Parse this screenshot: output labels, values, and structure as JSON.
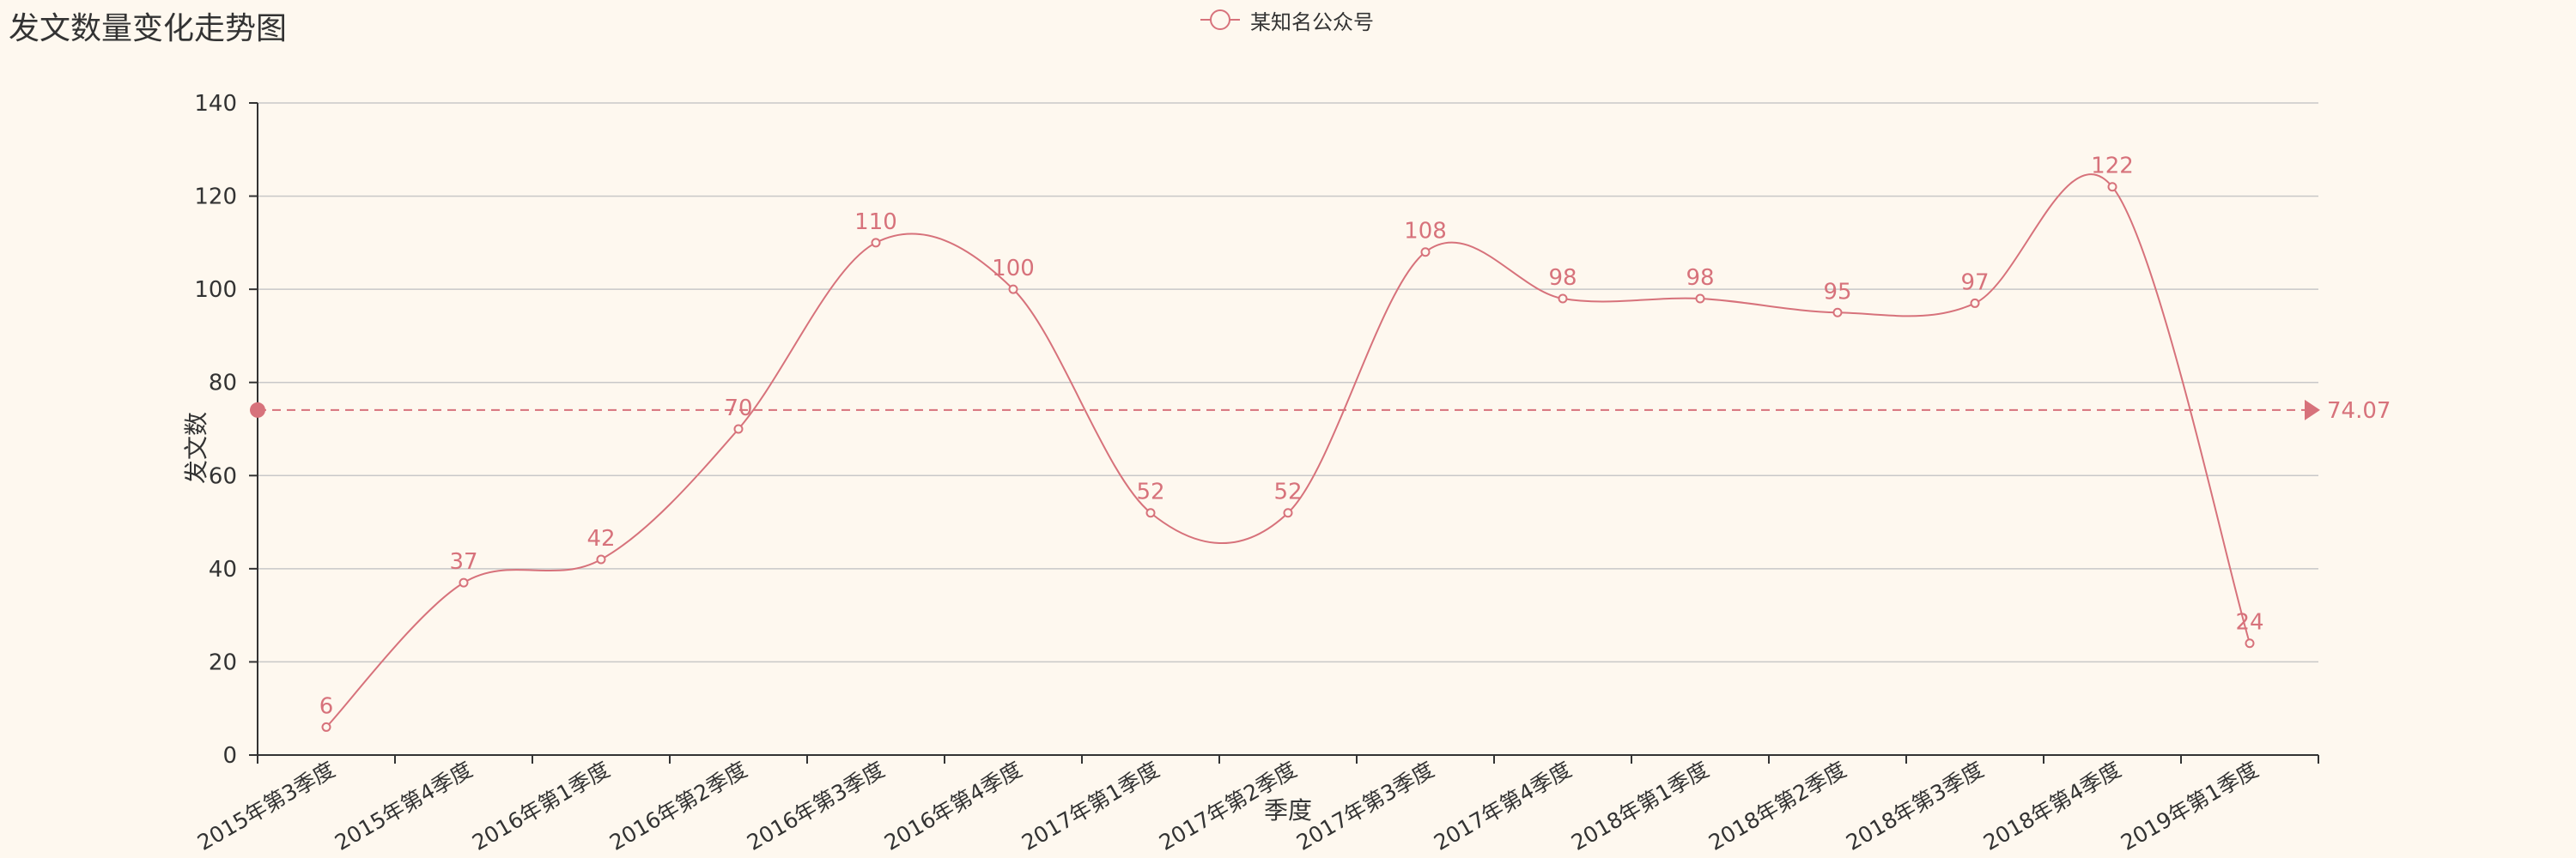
{
  "colors": {
    "background": "#fef8ef",
    "series": "#d7727b",
    "axis": "#333333",
    "grid": "#c8c8c8",
    "text": "#333333"
  },
  "chart_data": {
    "type": "line",
    "title": "发文数量变化走势图",
    "xlabel": "季度",
    "ylabel": "发文数",
    "categories": [
      "2015年第3季度",
      "2015年第4季度",
      "2016年第1季度",
      "2016年第2季度",
      "2016年第3季度",
      "2016年第4季度",
      "2017年第1季度",
      "2017年第2季度",
      "2017年第3季度",
      "2017年第4季度",
      "2018年第1季度",
      "2018年第2季度",
      "2018年第3季度",
      "2018年第4季度",
      "2019年第1季度"
    ],
    "series": [
      {
        "name": "某知名公众号",
        "values": [
          6,
          37,
          42,
          70,
          110,
          100,
          52,
          52,
          108,
          98,
          98,
          95,
          97,
          122,
          24
        ],
        "smooth": true
      }
    ],
    "ylim": [
      0,
      140
    ],
    "yticks": [
      0,
      20,
      40,
      60,
      80,
      100,
      120,
      140
    ],
    "mark_line": {
      "type": "average",
      "value": 74.07,
      "label": "74.07"
    },
    "grid": "horizontal",
    "legend_position": "top-center"
  }
}
